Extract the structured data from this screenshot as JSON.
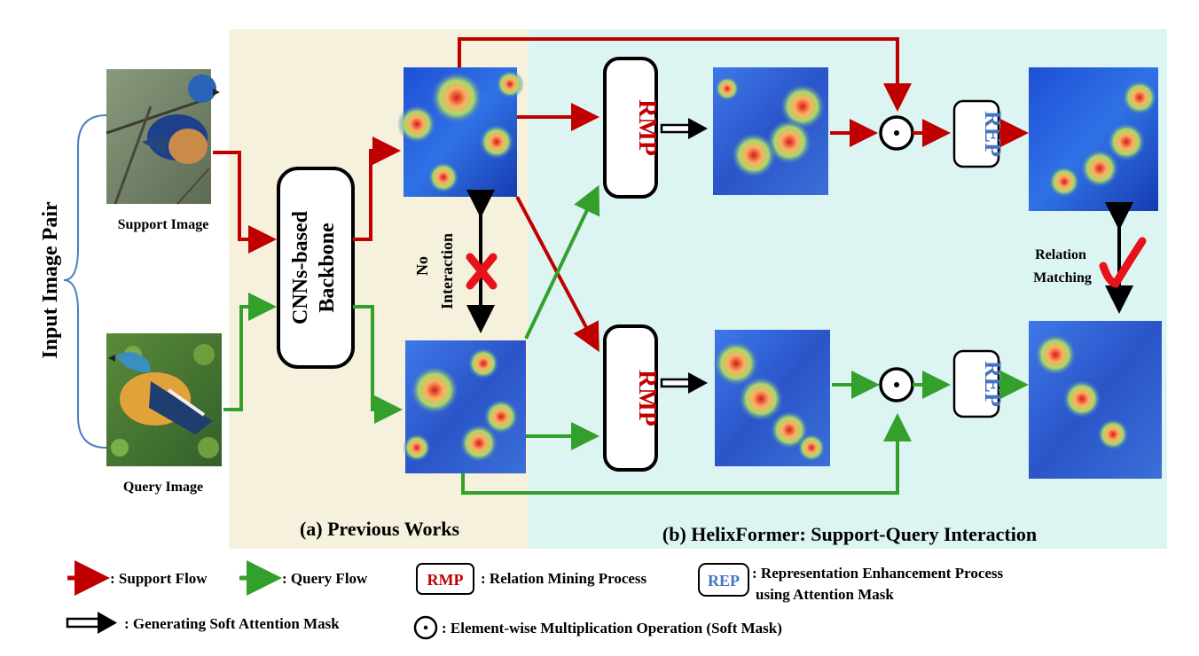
{
  "colors": {
    "support": "#c00000",
    "query": "#33a02c",
    "rmp_text": "#c00000",
    "rep_text": "#4472c4",
    "previous_bg": "#f5f1dc",
    "helix_bg": "#dcf5f3",
    "brace": "#4a7fc1"
  },
  "input": {
    "pair_label": "Input Image Pair",
    "support_label": "Support Image",
    "query_label": "Query Image"
  },
  "backbone": {
    "line1": "CNNs-based",
    "line2": "Backbone"
  },
  "interaction": {
    "line1": "No",
    "line2": "Interaction"
  },
  "blocks": {
    "rmp": "RMP",
    "rep": "REP"
  },
  "relation": {
    "line1": "Relation",
    "line2": "Matching"
  },
  "sections": {
    "previous": "(a) Previous Works",
    "helix": "(b) HelixFormer: Support-Query Interaction"
  },
  "legend": {
    "support_flow": ": Support Flow",
    "query_flow": ": Query Flow",
    "rmp_tag": "RMP",
    "rmp_desc": ": Relation Mining Process",
    "rep_tag": "REP",
    "rep_desc_line1": ": Representation Enhancement Process",
    "rep_desc_line2": "using Attention Mask",
    "soft_mask": ": Generating Soft Attention Mask",
    "elementwise": ": Element-wise Multiplication Operation (Soft Mask)"
  },
  "icons": {
    "support_image": "bird-photo",
    "query_image": "bird-photo",
    "heatmap": "attention-heatmap",
    "no_interaction": "cross-icon",
    "match": "checkmark-icon",
    "elementwise": "odot-icon"
  }
}
